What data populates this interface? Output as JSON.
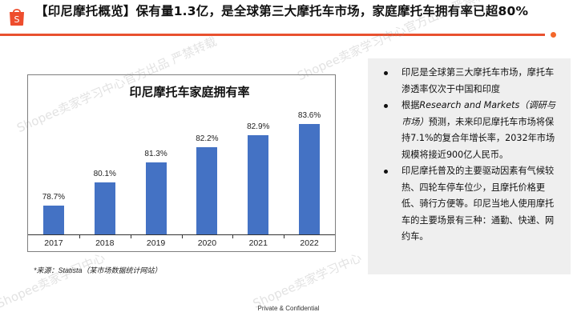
{
  "header": {
    "logo_icon": "shopee-bag-icon",
    "logo_letter": "S",
    "title": "【印尼摩托概览】保有量1.3亿，是全球第三大摩托车市场，家庭摩托车拥有率已超80%",
    "accent_color": "#e8512f"
  },
  "chart_data": {
    "type": "bar",
    "title": "印尼摩托车家庭拥有率",
    "categories": [
      "2017",
      "2018",
      "2019",
      "2020",
      "2021",
      "2022"
    ],
    "values": [
      78.7,
      80.1,
      81.3,
      82.2,
      82.9,
      83.6
    ],
    "value_labels": [
      "78.7%",
      "80.1%",
      "81.3%",
      "82.2%",
      "82.9%",
      "83.6%"
    ],
    "xlabel": "",
    "ylabel": "",
    "ylim": [
      77,
      84.5
    ],
    "grid": false,
    "legend": "none",
    "bar_color": "#4472c4"
  },
  "source_note": "*来源：Statista（某市场数据统计网站）",
  "side_panel": {
    "bullets": [
      {
        "text": "印尼是全球第三大摩托车市场，摩托车渗透率仅次于中国和印度"
      },
      {
        "prefix": "根据",
        "italic": "Research and Markets（调研与市场）",
        "text": "预测，未来印尼摩托车市场将保持7.1%的复合年增长率，2032年市场规模将接近900亿人民币。"
      },
      {
        "text": "印尼摩托普及的主要驱动因素有气候较热、四轮车停车位少，且摩托价格更低、骑行方便等。印尼当地人使用摩托车的主要场景有三种：通勤、快递、网约车。"
      }
    ]
  },
  "footer": {
    "text": "Private & Confidential"
  },
  "watermark": {
    "texts": [
      "Shopee卖家学习中心官方出品 严禁转载",
      "Shopee卖家学习中心官方出品 严禁转载",
      "Shopee卖家学习中心",
      "Shopee卖家学习中心"
    ]
  }
}
